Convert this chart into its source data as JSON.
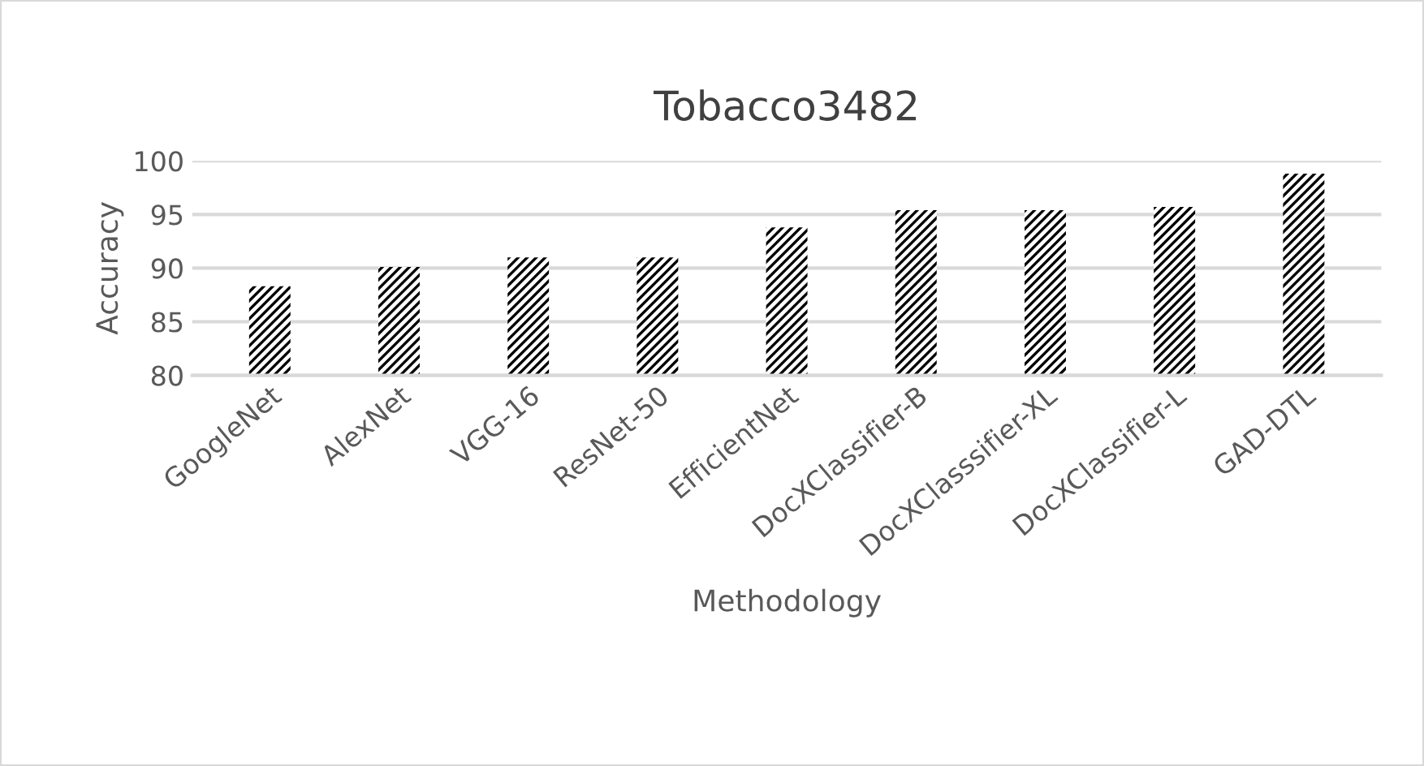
{
  "chart_data": {
    "type": "bar",
    "title": "Tobacco3482",
    "xlabel": "Methodology",
    "ylabel": "Accuracy",
    "categories": [
      "GoogleNet",
      "AlexNet",
      "VGG-16",
      "ResNet-50",
      "EfficientNet",
      "DocXClassifier-B",
      "DocXClasssifier-XL",
      "DocXClassifier-L",
      "GAD-DTL"
    ],
    "values": [
      88.3,
      90.1,
      91.0,
      91.0,
      93.8,
      95.4,
      95.4,
      95.7,
      98.8
    ],
    "color": "#000000",
    "ylim": [
      80,
      100
    ],
    "yticks": [
      80,
      85,
      90,
      95,
      100
    ],
    "grid": "y",
    "legend": false
  }
}
